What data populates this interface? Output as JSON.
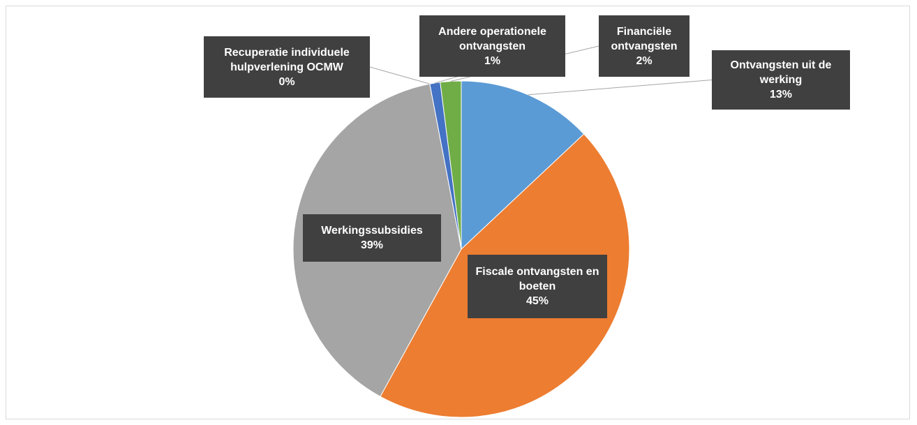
{
  "chart_data": {
    "type": "pie",
    "categories": [
      "Ontvangsten uit de werking",
      "Fiscale ontvangsten en boeten",
      "Werkingssubsidies",
      "Recuperatie individuele hulpverlening OCMW",
      "Andere operationele ontvangsten",
      "Financiële ontvangsten"
    ],
    "values": [
      13,
      45,
      39,
      0,
      1,
      2
    ],
    "value_labels": [
      "13%",
      "45%",
      "39%",
      "0%",
      "1%",
      "2%"
    ],
    "colors": [
      "#5b9bd5",
      "#ed7d31",
      "#a5a5a5",
      "#ffc000",
      "#4472c4",
      "#70ad47"
    ]
  }
}
